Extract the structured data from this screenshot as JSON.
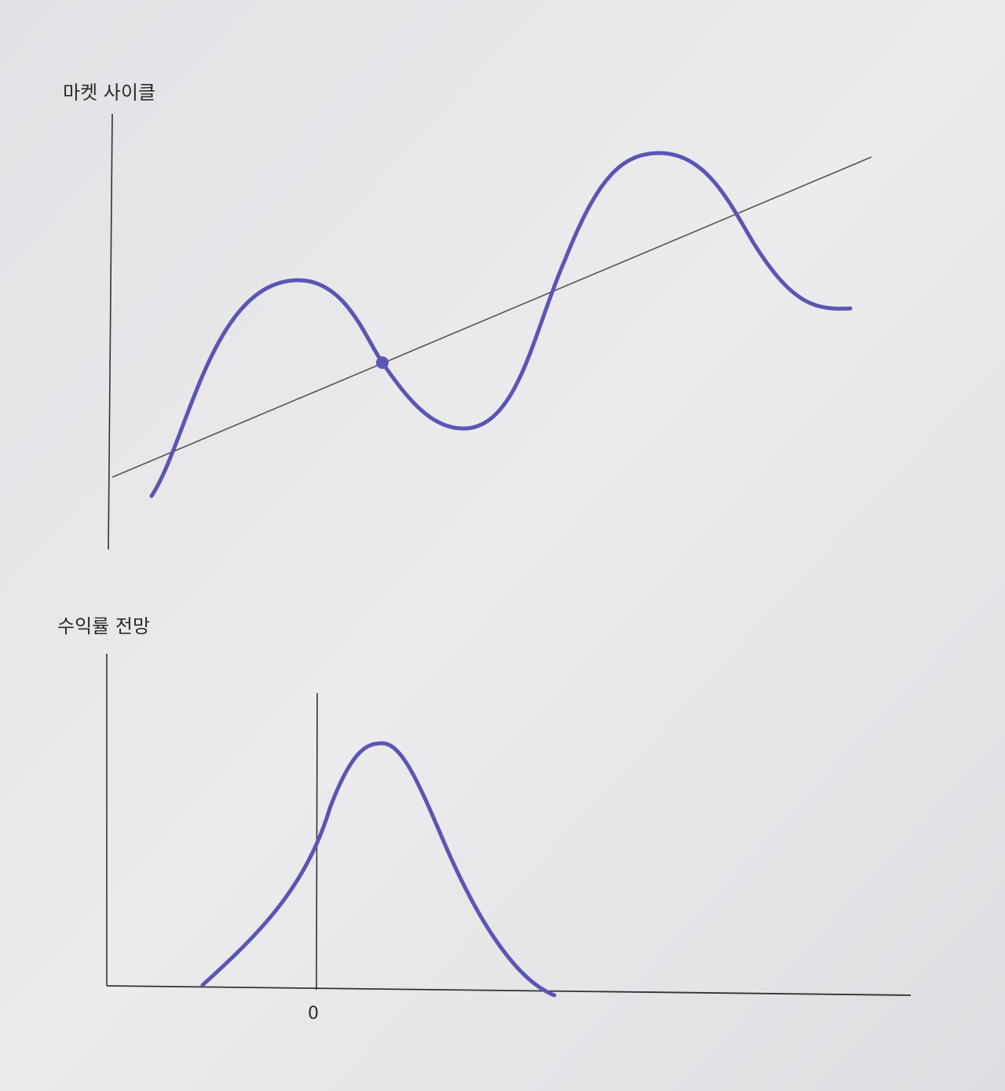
{
  "diagrams": [
    {
      "label": "마켓 사이클"
    },
    {
      "label": "수익률 전망",
      "tick": "0"
    }
  ]
}
